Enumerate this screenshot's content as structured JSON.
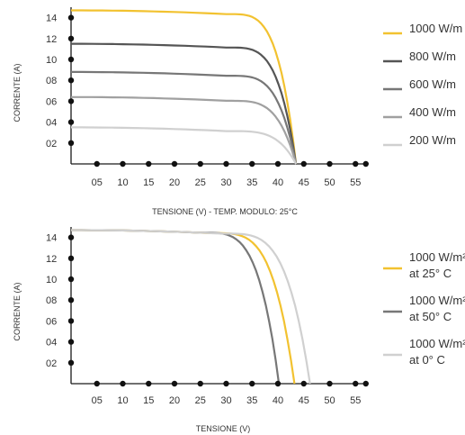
{
  "chart_data": [
    {
      "type": "line",
      "xlabel": "TENSIONE (V) - TEMP. MODULO: 25°C",
      "ylabel": "CORRENTE (A)",
      "xticks": [
        "05",
        "10",
        "15",
        "20",
        "25",
        "30",
        "35",
        "40",
        "45",
        "50",
        "55"
      ],
      "yticks": [
        "02",
        "04",
        "06",
        "08",
        "10",
        "12",
        "14"
      ],
      "xlim": [
        0,
        57
      ],
      "ylim": [
        0,
        15
      ],
      "grid": false,
      "legend_position": "right",
      "series": [
        {
          "name": "1000 W/m",
          "color": "#f2c230",
          "isc": 14.7,
          "knee": 30,
          "voc": 43.5
        },
        {
          "name": "800 W/m",
          "color": "#555555",
          "isc": 11.5,
          "knee": 30,
          "voc": 43.5
        },
        {
          "name": "600 W/m",
          "color": "#777777",
          "isc": 8.8,
          "knee": 30,
          "voc": 43.5
        },
        {
          "name": "400 W/m",
          "color": "#a0a0a0",
          "isc": 6.4,
          "knee": 30,
          "voc": 43.5
        },
        {
          "name": "200 W/m",
          "color": "#d0d0d0",
          "isc": 3.5,
          "knee": 30,
          "voc": 43.5
        }
      ]
    },
    {
      "type": "line",
      "xlabel": "TENSIONE (V)",
      "ylabel": "CORRENTE (A)",
      "xticks": [
        "05",
        "10",
        "15",
        "20",
        "25",
        "30",
        "35",
        "40",
        "45",
        "50",
        "55"
      ],
      "yticks": [
        "02",
        "04",
        "06",
        "08",
        "10",
        "12",
        "14"
      ],
      "xlim": [
        0,
        57
      ],
      "ylim": [
        0,
        15
      ],
      "grid": false,
      "legend_position": "right",
      "series": [
        {
          "name": "1000 W/m² at 25° C",
          "label_lines": [
            "1000 W/m²",
            "at 25° C"
          ],
          "color": "#f2c230",
          "isc": 14.7,
          "knee": 27,
          "voc": 43.2
        },
        {
          "name": "1000 W/m² at 50° C",
          "label_lines": [
            "1000 W/m²",
            "at 50° C"
          ],
          "color": "#777777",
          "isc": 14.7,
          "knee": 25,
          "voc": 40.2
        },
        {
          "name": "1000 W/m² at 0° C",
          "label_lines": [
            "1000 W/m²",
            "at 0° C"
          ],
          "color": "#d0d0d0",
          "isc": 14.7,
          "knee": 29,
          "voc": 46.2
        }
      ]
    }
  ]
}
